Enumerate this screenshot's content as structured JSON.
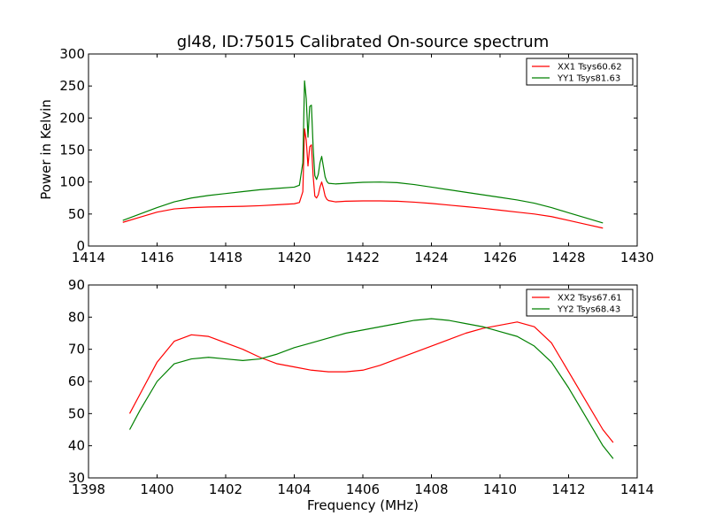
{
  "chart_data": [
    {
      "type": "line",
      "title": "gl48, ID:75015 Calibrated On-source spectrum",
      "xlabel": "",
      "ylabel": "Power in Kelvin",
      "xlim": [
        1414,
        1430
      ],
      "ylim": [
        0,
        300
      ],
      "xticks": [
        1414,
        1416,
        1418,
        1420,
        1422,
        1424,
        1426,
        1428,
        1430
      ],
      "yticks": [
        0,
        50,
        100,
        150,
        200,
        250,
        300
      ],
      "grid": false,
      "legend_position": "top-right",
      "series": [
        {
          "name": "XX1 Tsys60.62",
          "color": "#ff0000",
          "x": [
            1415.0,
            1415.5,
            1416.0,
            1416.5,
            1417.0,
            1417.5,
            1418.0,
            1418.5,
            1419.0,
            1419.5,
            1420.0,
            1420.15,
            1420.25,
            1420.3,
            1420.35,
            1420.4,
            1420.45,
            1420.5,
            1420.55,
            1420.6,
            1420.65,
            1420.7,
            1420.75,
            1420.8,
            1420.85,
            1420.9,
            1420.95,
            1421.0,
            1421.2,
            1421.5,
            1422.0,
            1422.5,
            1423.0,
            1423.5,
            1424.0,
            1424.5,
            1425.0,
            1425.5,
            1426.0,
            1426.5,
            1427.0,
            1427.5,
            1428.0,
            1428.5,
            1429.0
          ],
          "y": [
            37,
            45,
            53,
            58,
            60,
            61,
            61.5,
            62,
            63,
            64.5,
            66,
            68,
            85,
            183,
            165,
            125,
            155,
            158,
            110,
            78,
            75,
            80,
            92,
            100,
            90,
            78,
            73,
            71,
            69,
            70,
            70.5,
            70.5,
            70,
            68.5,
            66.5,
            64,
            61.5,
            59,
            56,
            53,
            50,
            46,
            40,
            34,
            28
          ]
        },
        {
          "name": "YY1 Tsys81.63",
          "color": "#008000",
          "x": [
            1415.0,
            1415.5,
            1416.0,
            1416.5,
            1417.0,
            1417.5,
            1418.0,
            1418.5,
            1419.0,
            1419.5,
            1420.0,
            1420.15,
            1420.25,
            1420.3,
            1420.35,
            1420.4,
            1420.45,
            1420.5,
            1420.55,
            1420.6,
            1420.65,
            1420.7,
            1420.75,
            1420.8,
            1420.85,
            1420.9,
            1420.95,
            1421.0,
            1421.2,
            1421.5,
            1422.0,
            1422.5,
            1423.0,
            1423.5,
            1424.0,
            1424.5,
            1425.0,
            1425.5,
            1426.0,
            1426.5,
            1427.0,
            1427.5,
            1428.0,
            1428.5,
            1429.0
          ],
          "y": [
            40,
            50,
            60,
            69,
            75,
            79,
            82,
            85,
            88,
            90,
            92,
            95,
            130,
            258,
            230,
            170,
            218,
            220,
            155,
            110,
            104,
            112,
            130,
            140,
            124,
            108,
            101,
            98,
            97,
            98,
            99.5,
            100,
            99,
            96,
            92,
            88,
            84,
            80,
            76,
            72,
            67,
            60,
            52,
            44,
            36
          ]
        }
      ]
    },
    {
      "type": "line",
      "title": "",
      "xlabel": "Frequency (MHz)",
      "ylabel": "",
      "xlim": [
        1398,
        1414
      ],
      "ylim": [
        30,
        90
      ],
      "xticks": [
        1398,
        1400,
        1402,
        1404,
        1406,
        1408,
        1410,
        1412,
        1414
      ],
      "yticks": [
        30,
        40,
        50,
        60,
        70,
        80,
        90
      ],
      "grid": false,
      "legend_position": "top-right",
      "series": [
        {
          "name": "XX2 Tsys67.61",
          "color": "#ff0000",
          "x": [
            1399.2,
            1399.5,
            1400.0,
            1400.5,
            1401.0,
            1401.5,
            1402.0,
            1402.5,
            1403.0,
            1403.5,
            1404.0,
            1404.5,
            1405.0,
            1405.5,
            1406.0,
            1406.5,
            1407.0,
            1407.5,
            1408.0,
            1408.5,
            1409.0,
            1409.5,
            1410.0,
            1410.5,
            1411.0,
            1411.5,
            1412.0,
            1412.5,
            1413.0,
            1413.3
          ],
          "y": [
            50,
            56,
            66,
            72.5,
            74.5,
            74,
            72,
            70,
            67.5,
            65.5,
            64.5,
            63.5,
            63,
            63,
            63.5,
            65,
            67,
            69,
            71,
            73,
            75,
            76.5,
            77.5,
            78.5,
            77,
            72,
            63,
            54,
            45,
            41
          ]
        },
        {
          "name": "YY2 Tsys68.43",
          "color": "#008000",
          "x": [
            1399.2,
            1399.5,
            1400.0,
            1400.5,
            1401.0,
            1401.5,
            1402.0,
            1402.5,
            1403.0,
            1403.5,
            1404.0,
            1404.5,
            1405.0,
            1405.5,
            1406.0,
            1406.5,
            1407.0,
            1407.5,
            1408.0,
            1408.5,
            1409.0,
            1409.5,
            1410.0,
            1410.5,
            1411.0,
            1411.5,
            1412.0,
            1412.5,
            1413.0,
            1413.3
          ],
          "y": [
            45,
            51,
            60,
            65.5,
            67,
            67.5,
            67,
            66.5,
            67,
            68.5,
            70.5,
            72,
            73.5,
            75,
            76,
            77,
            78,
            79,
            79.5,
            79,
            78,
            77,
            75.5,
            74,
            71,
            66,
            58,
            49,
            40,
            36
          ]
        }
      ]
    }
  ]
}
